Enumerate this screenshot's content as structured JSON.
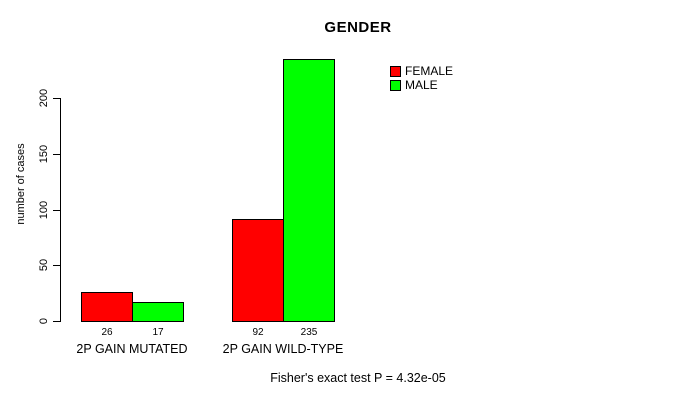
{
  "chart_data": {
    "type": "bar",
    "title": "GENDER",
    "xlabel": "",
    "ylabel": "number of cases",
    "categories": [
      "2P GAIN MUTATED",
      "2P GAIN WILD-TYPE"
    ],
    "series": [
      {
        "name": "FEMALE",
        "color": "#ff0000",
        "values": [
          26,
          92
        ]
      },
      {
        "name": "MALE",
        "color": "#00ff00",
        "values": [
          17,
          235
        ]
      }
    ],
    "bar_value_labels": [
      [
        26,
        92
      ],
      [
        17,
        235
      ]
    ],
    "yticks": [
      0,
      50,
      100,
      150,
      200
    ],
    "ylim": [
      0,
      240
    ],
    "grid": false,
    "legend_position": "top-center-right-inside",
    "annotation": "Fisher's exact test P = 4.32e-05",
    "colors": {
      "female": "#ff0000",
      "male": "#00ff00",
      "axis": "#000000",
      "background": "#ffffff"
    }
  }
}
